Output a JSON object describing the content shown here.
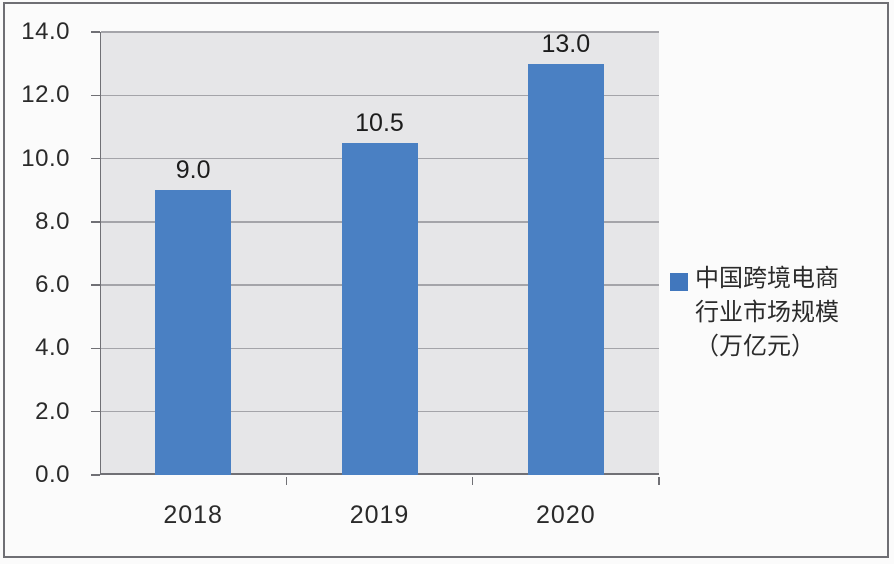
{
  "figure": {
    "background": "#fbfbfb",
    "frame_color": "#6f6f74"
  },
  "chart_data": {
    "type": "bar",
    "title": "",
    "xlabel": "",
    "ylabel": "",
    "categories": [
      "2018",
      "2019",
      "2020"
    ],
    "series": [
      {
        "name": "中国跨境电商行业市场规模（万亿元）",
        "values": [
          9.0,
          10.5,
          13.0
        ],
        "color": "#4A80C3"
      }
    ],
    "bar_value_labels": [
      "9.0",
      "10.5",
      "13.0"
    ],
    "ylim": [
      0.0,
      14.0
    ],
    "y_tick_step": 2.0,
    "y_tick_labels": [
      "0.0",
      "2.0",
      "4.0",
      "6.0",
      "8.0",
      "10.0",
      "12.0",
      "14.0"
    ],
    "grid": true,
    "colors": {
      "plot_background": "#e6e6e8",
      "gridline": "#a4a4a9",
      "axis": "#707075",
      "tick": "#707075",
      "bar": "#4A80C3",
      "legend_swatch": "#4177BD",
      "text": "#2a2a2a"
    },
    "legend": {
      "position": "right",
      "label": "中国跨境电商行业市场规模（万亿元）",
      "label_lines": [
        "中国跨境电商",
        "行业市场规模",
        "（万亿元）"
      ]
    }
  }
}
